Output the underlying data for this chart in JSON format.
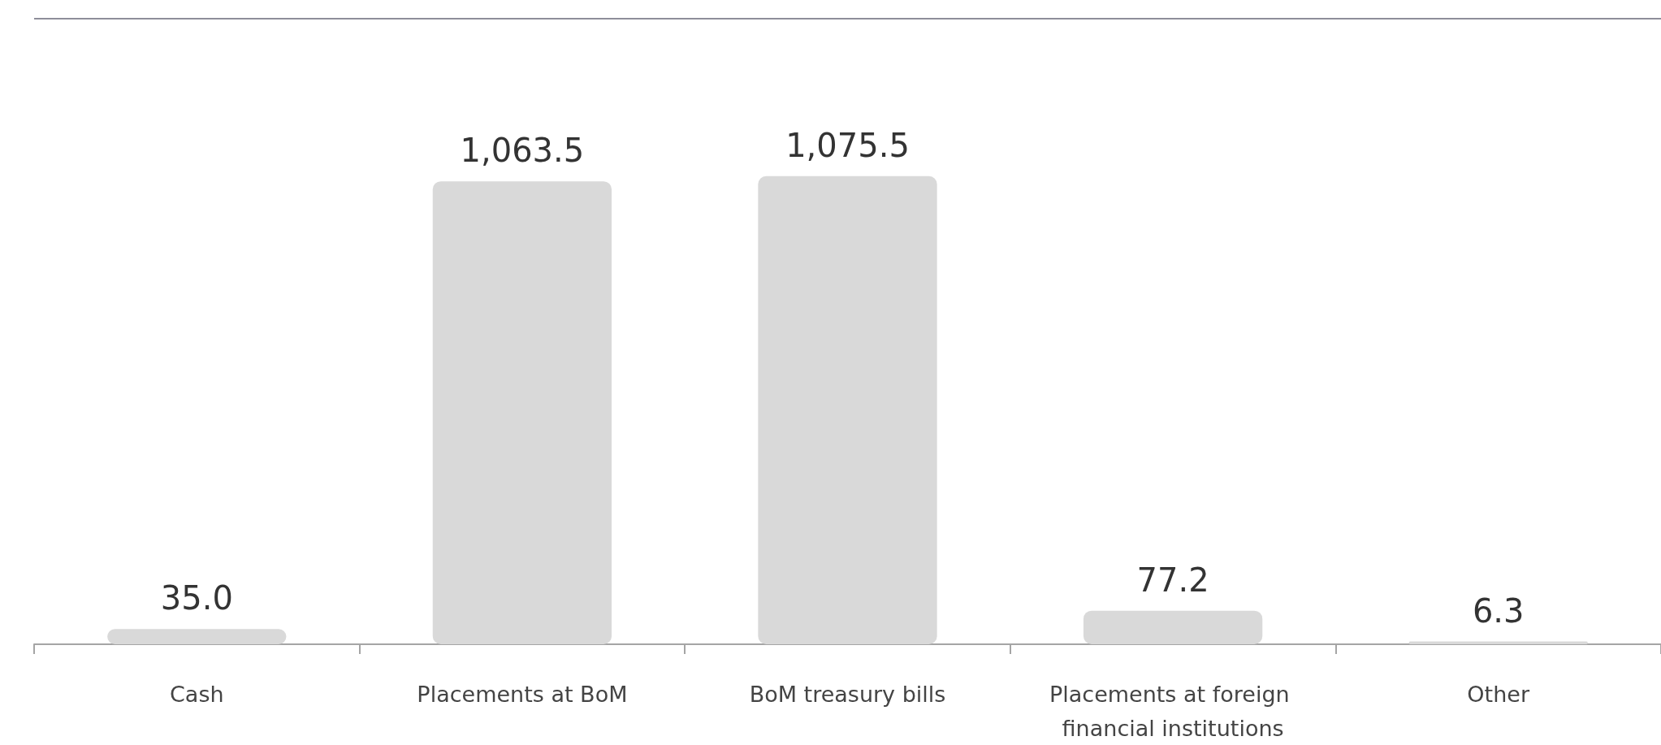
{
  "chart_data": {
    "type": "bar",
    "categories": [
      "Cash",
      "Placements at BoM",
      "BoM treasury bills",
      "Placements at foreign financial institutions",
      "Other"
    ],
    "values": [
      35.0,
      1063.5,
      1075.5,
      77.2,
      6.3
    ],
    "color": "#d9d9d9",
    "value_labels": [
      "35.0",
      "1,063.5",
      "1,075.5",
      "77.2",
      "6.3"
    ]
  }
}
